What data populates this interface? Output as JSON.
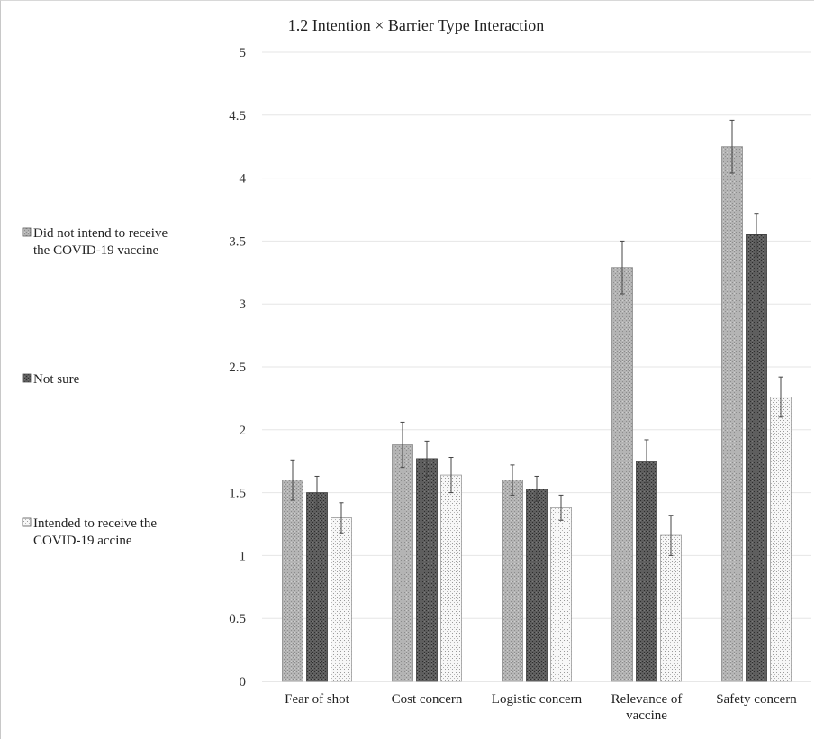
{
  "chart_data": {
    "type": "bar",
    "title": "1.2 Intention × Barrier Type Interaction",
    "xlabel": "",
    "ylabel": "",
    "ylim": [
      0,
      5
    ],
    "yticks": [
      "0",
      "0.5",
      "1",
      "1.5",
      "2",
      "2.5",
      "3",
      "3.5",
      "4",
      "4.5",
      "5"
    ],
    "ytick_values": [
      0,
      0.5,
      1,
      1.5,
      2,
      2.5,
      3,
      3.5,
      4,
      4.5,
      5
    ],
    "grid": true,
    "legend_position": "left",
    "categories": [
      [
        "Fear of shot"
      ],
      [
        "Cost concern"
      ],
      [
        "Logistic concern"
      ],
      [
        "Relevance of",
        "vaccine"
      ],
      [
        "Safety concern"
      ]
    ],
    "series": [
      {
        "name": [
          "Did not intend to receive",
          "the COVID-19 vaccine"
        ],
        "pattern": "light-crosshatch",
        "color": "#a9a9a9",
        "values": [
          1.6,
          1.88,
          1.6,
          3.29,
          4.25
        ],
        "errors": [
          0.16,
          0.18,
          0.12,
          0.21,
          0.21
        ]
      },
      {
        "name": [
          "Not sure"
        ],
        "pattern": "dark-crosshatch",
        "color": "#555555",
        "values": [
          1.5,
          1.77,
          1.53,
          1.75,
          3.55
        ],
        "errors": [
          0.13,
          0.14,
          0.1,
          0.17,
          0.17
        ]
      },
      {
        "name": [
          "Intended to receive the",
          "COVID-19 accine"
        ],
        "pattern": "light-dots",
        "color": "#f4f4f4",
        "values": [
          1.3,
          1.64,
          1.38,
          1.16,
          2.26
        ],
        "errors": [
          0.12,
          0.14,
          0.1,
          0.16,
          0.16
        ]
      }
    ]
  }
}
